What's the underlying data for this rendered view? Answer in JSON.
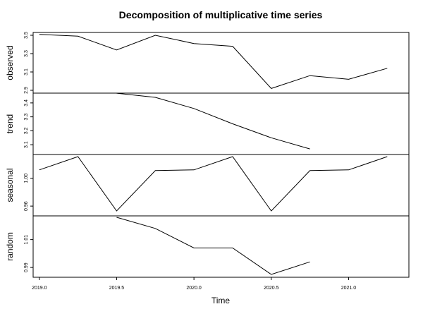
{
  "chart_data": {
    "type": "line",
    "title": "Decomposition of multiplicative time series",
    "xlabel": "Time",
    "x": [
      2019.0,
      2019.25,
      2019.5,
      2019.75,
      2020.0,
      2020.25,
      2020.5,
      2020.75,
      2021.0,
      2021.25
    ],
    "x_ticks": [
      2019.0,
      2019.5,
      2020.0,
      2020.5,
      2021.0
    ],
    "x_tick_labels": [
      "2019.0",
      "2019.5",
      "2020.0",
      "2020.5",
      "2021.0"
    ],
    "panels": [
      {
        "name": "observed",
        "ylabel": "observed",
        "ylim": [
          2.9,
          3.5
        ],
        "y_ticks": [
          2.9,
          3.1,
          3.3,
          3.5
        ],
        "y_tick_labels": [
          "2.9",
          "3.1",
          "3.3",
          "3.5"
        ],
        "values": [
          3.51,
          3.49,
          3.34,
          3.5,
          3.41,
          3.38,
          2.92,
          3.06,
          3.02,
          3.14
        ]
      },
      {
        "name": "trend",
        "ylabel": "trend",
        "ylim": [
          3.05,
          3.45
        ],
        "y_ticks": [
          3.1,
          3.2,
          3.3,
          3.4
        ],
        "y_tick_labels": [
          "3.1",
          "3.2",
          "3.3",
          "3.4"
        ],
        "values": [
          null,
          null,
          3.47,
          3.44,
          3.36,
          3.25,
          3.15,
          3.07,
          null,
          null
        ]
      },
      {
        "name": "seasonal",
        "ylabel": "seasonal",
        "ylim": [
          0.95,
          1.03
        ],
        "y_ticks": [
          0.96,
          1.0
        ],
        "y_tick_labels": [
          "0.96",
          "1.00"
        ],
        "values": [
          1.012,
          1.031,
          0.953,
          1.011,
          1.012,
          1.031,
          0.953,
          1.011,
          1.012,
          1.031
        ]
      },
      {
        "name": "random",
        "ylabel": "random",
        "ylim": [
          0.985,
          1.025
        ],
        "y_ticks": [
          0.99,
          1.01
        ],
        "y_tick_labels": [
          "0.99",
          "1.01"
        ],
        "values": [
          null,
          null,
          1.026,
          1.018,
          1.004,
          1.004,
          0.985,
          0.994,
          null,
          null
        ]
      }
    ]
  }
}
